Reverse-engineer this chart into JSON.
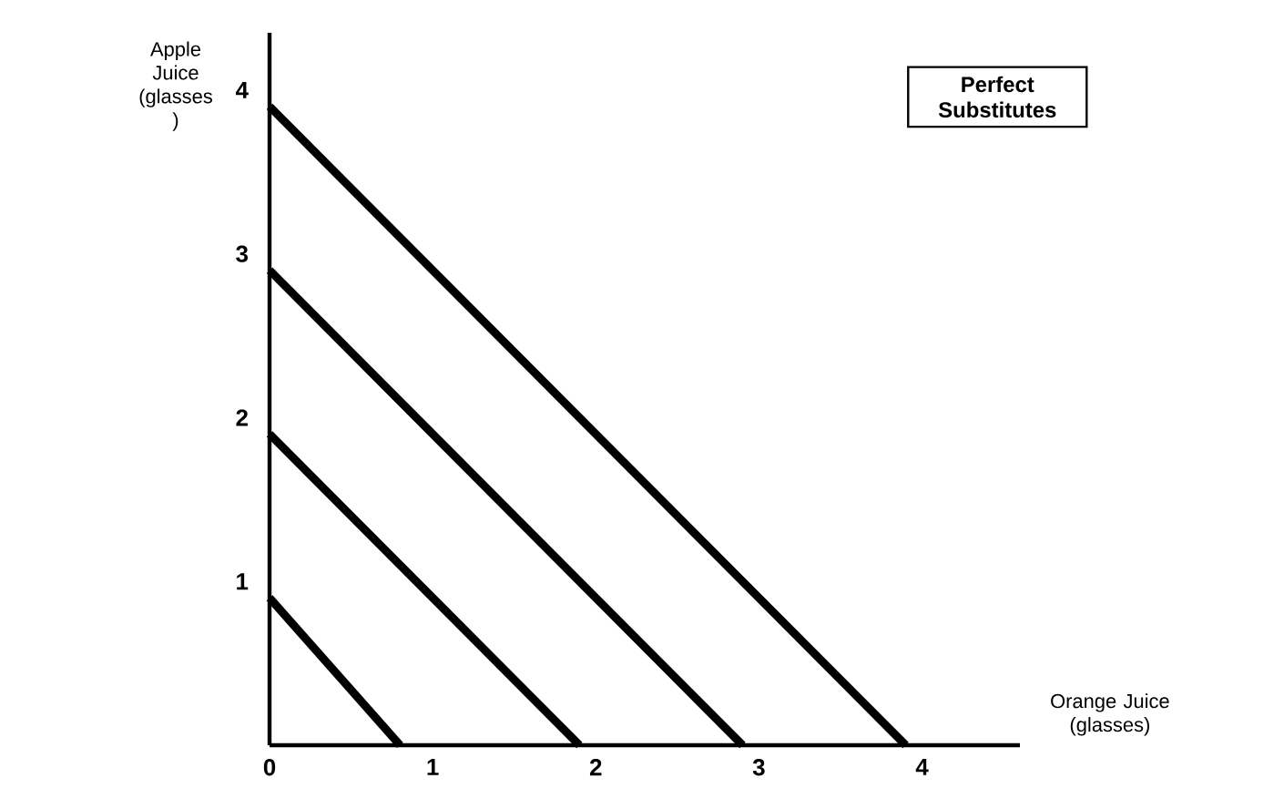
{
  "chart_data": {
    "type": "line",
    "xlabel": "Orange Juice (glasses)",
    "ylabel": "Apple Juice (glasses )",
    "annotations": [
      "Perfect Substitutes"
    ],
    "xlim": [
      0,
      4.6
    ],
    "ylim": [
      0,
      4.35
    ],
    "xticks": [
      0,
      1,
      2,
      3,
      4
    ],
    "yticks": [
      1,
      2,
      3,
      4
    ],
    "series": [
      {
        "color": "#000000",
        "x": [
          0,
          0.8
        ],
        "values": [
          0.9,
          0
        ]
      },
      {
        "color": "#000000",
        "x": [
          0,
          1.9
        ],
        "values": [
          1.9,
          0
        ]
      },
      {
        "color": "#000000",
        "x": [
          0,
          2.9
        ],
        "values": [
          2.9,
          0
        ]
      },
      {
        "color": "#000000",
        "x": [
          0,
          3.9
        ],
        "values": [
          3.9,
          0
        ]
      }
    ]
  }
}
